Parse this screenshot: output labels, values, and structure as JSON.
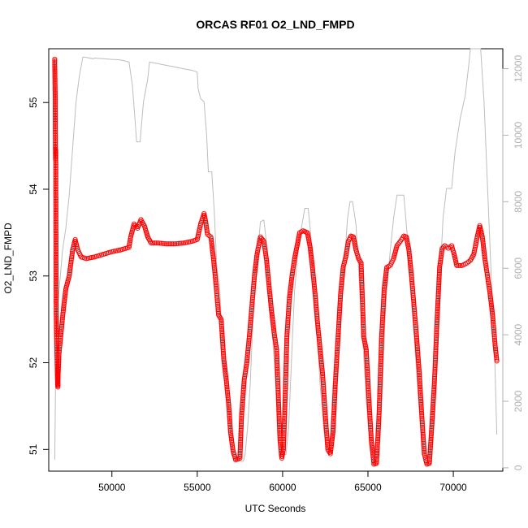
{
  "chart_data": {
    "type": "scatter",
    "title": "ORCAS RF01 O2_LND_FMPD",
    "xlabel": "UTC Seconds",
    "ylabel": "O2_LND_FMPD",
    "xlim": [
      46300,
      72900
    ],
    "ylim": [
      50.75,
      55.62
    ],
    "x_ticks": [
      "50000",
      "55000",
      "60000",
      "65000",
      "70000"
    ],
    "y_ticks": [
      "51",
      "52",
      "53",
      "54",
      "55"
    ],
    "y2lim": [
      -100,
      12600
    ],
    "y2_ticks": [
      "0",
      "2000",
      "4000",
      "6000",
      "8000",
      "10000",
      "12000"
    ],
    "grid": false,
    "colors": {
      "primary": "#ff0000",
      "secondary": "#bdbdbd"
    },
    "series": [
      {
        "color": "#ff0000",
        "marker": "open-circle",
        "points": [
          [
            46650,
            55.5
          ],
          [
            46650,
            55.42
          ],
          [
            46660,
            55.35
          ],
          [
            46670,
            55.18
          ],
          [
            46680,
            55.05
          ],
          [
            46685,
            54.78
          ],
          [
            46690,
            54.5
          ],
          [
            46700,
            54.35
          ],
          [
            46710,
            54.45
          ],
          [
            46720,
            53.6
          ],
          [
            46730,
            52.85
          ],
          [
            46740,
            52.55
          ],
          [
            46760,
            52.3
          ],
          [
            46780,
            52.1
          ],
          [
            46800,
            51.9
          ],
          [
            46820,
            51.75
          ],
          [
            46840,
            51.72
          ],
          [
            46850,
            51.85
          ],
          [
            46900,
            52.1
          ],
          [
            47000,
            52.3
          ],
          [
            47150,
            52.6
          ],
          [
            47300,
            52.85
          ],
          [
            47500,
            53.0
          ],
          [
            47700,
            53.3
          ],
          [
            47850,
            53.42
          ],
          [
            48000,
            53.3
          ],
          [
            48200,
            53.22
          ],
          [
            48500,
            53.2
          ],
          [
            49000,
            53.22
          ],
          [
            49500,
            53.25
          ],
          [
            50000,
            53.28
          ],
          [
            50500,
            53.3
          ],
          [
            51000,
            53.33
          ],
          [
            51100,
            53.45
          ],
          [
            51300,
            53.6
          ],
          [
            51500,
            53.55
          ],
          [
            51700,
            53.65
          ],
          [
            51900,
            53.58
          ],
          [
            52100,
            53.45
          ],
          [
            52300,
            53.38
          ],
          [
            52700,
            53.38
          ],
          [
            53200,
            53.37
          ],
          [
            53700,
            53.37
          ],
          [
            54200,
            53.38
          ],
          [
            54700,
            53.4
          ],
          [
            55000,
            53.42
          ],
          [
            55200,
            53.6
          ],
          [
            55400,
            53.72
          ],
          [
            55500,
            53.62
          ],
          [
            55600,
            53.48
          ],
          [
            55800,
            53.45
          ],
          [
            55950,
            53.2
          ],
          [
            56100,
            52.9
          ],
          [
            56250,
            52.55
          ],
          [
            56400,
            52.5
          ],
          [
            56550,
            52.05
          ],
          [
            56700,
            51.8
          ],
          [
            56850,
            51.5
          ],
          [
            56950,
            51.2
          ],
          [
            57100,
            50.98
          ],
          [
            57250,
            50.88
          ],
          [
            57500,
            50.9
          ],
          [
            57600,
            51.4
          ],
          [
            57750,
            51.8
          ],
          [
            57900,
            52.0
          ],
          [
            58050,
            52.3
          ],
          [
            58200,
            52.65
          ],
          [
            58350,
            53.0
          ],
          [
            58500,
            53.25
          ],
          [
            58700,
            53.45
          ],
          [
            58900,
            53.4
          ],
          [
            59050,
            53.2
          ],
          [
            59200,
            52.9
          ],
          [
            59350,
            52.6
          ],
          [
            59500,
            52.35
          ],
          [
            59650,
            52.15
          ],
          [
            59750,
            51.6
          ],
          [
            59850,
            51.1
          ],
          [
            59950,
            50.9
          ],
          [
            60050,
            51.0
          ],
          [
            60150,
            51.6
          ],
          [
            60250,
            52.3
          ],
          [
            60400,
            52.75
          ],
          [
            60550,
            53.0
          ],
          [
            60700,
            53.2
          ],
          [
            60850,
            53.35
          ],
          [
            61000,
            53.5
          ],
          [
            61200,
            53.52
          ],
          [
            61450,
            53.5
          ],
          [
            61600,
            53.35
          ],
          [
            61750,
            53.1
          ],
          [
            61900,
            52.8
          ],
          [
            62050,
            52.45
          ],
          [
            62200,
            52.15
          ],
          [
            62350,
            51.85
          ],
          [
            62500,
            51.4
          ],
          [
            62650,
            51.0
          ],
          [
            62800,
            50.95
          ],
          [
            62950,
            51.2
          ],
          [
            63100,
            51.8
          ],
          [
            63250,
            52.3
          ],
          [
            63400,
            52.8
          ],
          [
            63550,
            53.1
          ],
          [
            63700,
            53.22
          ],
          [
            63850,
            53.4
          ],
          [
            64000,
            53.46
          ],
          [
            64150,
            53.45
          ],
          [
            64300,
            53.3
          ],
          [
            64450,
            53.2
          ],
          [
            64600,
            53.15
          ],
          [
            64750,
            52.3
          ],
          [
            64900,
            52.15
          ],
          [
            65050,
            51.6
          ],
          [
            65200,
            51.1
          ],
          [
            65350,
            50.83
          ],
          [
            65500,
            50.84
          ],
          [
            65650,
            51.4
          ],
          [
            65800,
            52.3
          ],
          [
            65950,
            52.85
          ],
          [
            66100,
            53.1
          ],
          [
            66300,
            53.12
          ],
          [
            66500,
            53.2
          ],
          [
            66700,
            53.35
          ],
          [
            66900,
            53.4
          ],
          [
            67100,
            53.46
          ],
          [
            67250,
            53.45
          ],
          [
            67400,
            53.3
          ],
          [
            67550,
            53.0
          ],
          [
            67700,
            52.65
          ],
          [
            67850,
            52.3
          ],
          [
            68000,
            51.9
          ],
          [
            68150,
            51.4
          ],
          [
            68300,
            50.95
          ],
          [
            68450,
            50.83
          ],
          [
            68600,
            50.84
          ],
          [
            68750,
            51.3
          ],
          [
            68900,
            51.8
          ],
          [
            69050,
            52.5
          ],
          [
            69200,
            53.1
          ],
          [
            69350,
            53.32
          ],
          [
            69500,
            53.35
          ],
          [
            69700,
            53.32
          ],
          [
            69900,
            53.35
          ],
          [
            70050,
            53.25
          ],
          [
            70200,
            53.12
          ],
          [
            70500,
            53.12
          ],
          [
            70800,
            53.15
          ],
          [
            71000,
            53.18
          ],
          [
            71200,
            53.25
          ],
          [
            71400,
            53.45
          ],
          [
            71550,
            53.58
          ],
          [
            71700,
            53.45
          ],
          [
            71850,
            53.2
          ],
          [
            72000,
            53.0
          ],
          [
            72150,
            52.8
          ],
          [
            72300,
            52.55
          ],
          [
            72450,
            52.2
          ],
          [
            72550,
            52.02
          ]
        ]
      },
      {
        "color": "#bdbdbd",
        "marker": "line",
        "axis": "right",
        "points": [
          [
            46650,
            250
          ],
          [
            46700,
            2500
          ],
          [
            46850,
            5000
          ],
          [
            47100,
            6500
          ],
          [
            47300,
            7200
          ],
          [
            47500,
            8200
          ],
          [
            47700,
            9600
          ],
          [
            47900,
            11000
          ],
          [
            48100,
            11800
          ],
          [
            48300,
            12350
          ],
          [
            48400,
            12350
          ],
          [
            48900,
            12300
          ],
          [
            49000,
            12320
          ],
          [
            49500,
            12300
          ],
          [
            50000,
            12280
          ],
          [
            50400,
            12270
          ],
          [
            50600,
            12250
          ],
          [
            51000,
            12200
          ],
          [
            51200,
            11500
          ],
          [
            51350,
            10500
          ],
          [
            51450,
            9800
          ],
          [
            51650,
            9800
          ],
          [
            51850,
            11000
          ],
          [
            52100,
            11700
          ],
          [
            52200,
            12200
          ],
          [
            52700,
            12150
          ],
          [
            53200,
            12100
          ],
          [
            53700,
            12050
          ],
          [
            54200,
            12000
          ],
          [
            54700,
            11950
          ],
          [
            55000,
            11900
          ],
          [
            55050,
            11400
          ],
          [
            55100,
            11300
          ],
          [
            55200,
            11100
          ],
          [
            55400,
            11000
          ],
          [
            55550,
            10000
          ],
          [
            55650,
            8900
          ],
          [
            55850,
            8900
          ],
          [
            56000,
            7700
          ],
          [
            56150,
            6000
          ],
          [
            56300,
            5500
          ],
          [
            56450,
            4000
          ],
          [
            56600,
            3700
          ],
          [
            56800,
            2000
          ],
          [
            56950,
            1200
          ],
          [
            57100,
            400
          ],
          [
            57250,
            200
          ],
          [
            57700,
            200
          ],
          [
            57800,
            400
          ],
          [
            57950,
            1200
          ],
          [
            58100,
            2500
          ],
          [
            58250,
            4300
          ],
          [
            58400,
            5500
          ],
          [
            58550,
            6500
          ],
          [
            58700,
            7400
          ],
          [
            58900,
            7450
          ],
          [
            59050,
            6800
          ],
          [
            59200,
            5200
          ],
          [
            59400,
            4000
          ],
          [
            59600,
            2500
          ],
          [
            59800,
            1200
          ],
          [
            59950,
            400
          ],
          [
            60200,
            400
          ],
          [
            60350,
            1200
          ],
          [
            60550,
            3600
          ],
          [
            60700,
            5300
          ],
          [
            60900,
            6500
          ],
          [
            61100,
            7200
          ],
          [
            61300,
            7800
          ],
          [
            61500,
            7800
          ],
          [
            61650,
            7000
          ],
          [
            61800,
            5800
          ],
          [
            62000,
            4200
          ],
          [
            62200,
            2500
          ],
          [
            62400,
            1200
          ],
          [
            62600,
            600
          ],
          [
            62800,
            500
          ],
          [
            63000,
            1000
          ],
          [
            63200,
            2800
          ],
          [
            63400,
            4500
          ],
          [
            63600,
            6000
          ],
          [
            63800,
            7500
          ],
          [
            63950,
            8000
          ],
          [
            64100,
            8000
          ],
          [
            64300,
            7300
          ],
          [
            64500,
            5500
          ],
          [
            64700,
            3800
          ],
          [
            64900,
            2000
          ],
          [
            65100,
            800
          ],
          [
            65300,
            350
          ],
          [
            65550,
            300
          ],
          [
            65700,
            800
          ],
          [
            65850,
            2500
          ],
          [
            66050,
            5000
          ],
          [
            66300,
            6500
          ],
          [
            66500,
            7500
          ],
          [
            66700,
            8200
          ],
          [
            67100,
            8200
          ],
          [
            67300,
            7000
          ],
          [
            67500,
            5500
          ],
          [
            67700,
            4000
          ],
          [
            67900,
            2500
          ],
          [
            68100,
            1200
          ],
          [
            68300,
            400
          ],
          [
            68600,
            350
          ],
          [
            68800,
            1000
          ],
          [
            69000,
            3000
          ],
          [
            69200,
            5500
          ],
          [
            69400,
            7500
          ],
          [
            69600,
            8400
          ],
          [
            69900,
            8400
          ],
          [
            70100,
            9500
          ],
          [
            70400,
            10500
          ],
          [
            70700,
            11200
          ],
          [
            70900,
            12100
          ],
          [
            71000,
            12600
          ],
          [
            71600,
            12600
          ],
          [
            71800,
            11000
          ],
          [
            72000,
            8500
          ],
          [
            72200,
            6000
          ],
          [
            72400,
            3800
          ],
          [
            72550,
            1000
          ]
        ]
      }
    ]
  }
}
